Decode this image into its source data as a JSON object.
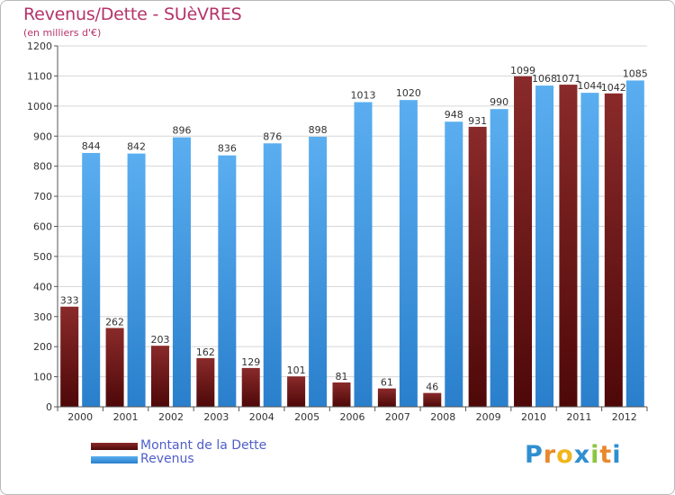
{
  "header": {
    "title": "Revenus/Dette - SUèVRES",
    "subtitle": "(en milliers d'€)"
  },
  "legend": {
    "items": [
      {
        "label": "Montant de la Dette",
        "color": "#7a1c1c"
      },
      {
        "label": "Revenus",
        "color": "#3f9be0"
      }
    ]
  },
  "logo": {
    "text": "Proxiti",
    "letters": [
      {
        "ch": "P",
        "color": "#2f8fd0"
      },
      {
        "ch": "r",
        "color": "#e8892c"
      },
      {
        "ch": "o",
        "color": "#f1b51c"
      },
      {
        "ch": "x",
        "color": "#2f8fd0"
      },
      {
        "ch": "i",
        "color": "#8cc63f"
      },
      {
        "ch": "t",
        "color": "#e8892c"
      },
      {
        "ch": "i",
        "color": "#2f8fd0"
      }
    ]
  },
  "chart_data": {
    "type": "bar",
    "title": "Revenus/Dette - SUèVRES",
    "subtitle": "(en milliers d'€)",
    "categories": [
      "2000",
      "2001",
      "2002",
      "2003",
      "2004",
      "2005",
      "2006",
      "2007",
      "2008",
      "2009",
      "2010",
      "2011",
      "2012"
    ],
    "series": [
      {
        "name": "Montant de la Dette",
        "color": "#7a1c1c",
        "values": [
          333,
          262,
          203,
          162,
          129,
          101,
          81,
          61,
          46,
          931,
          1099,
          1071,
          1042
        ]
      },
      {
        "name": "Revenus",
        "color": "#3f9be0",
        "values": [
          844,
          842,
          896,
          836,
          876,
          898,
          1013,
          1020,
          948,
          990,
          1068,
          1044,
          1085
        ]
      }
    ],
    "ylim": [
      0,
      1200
    ],
    "yticks": [
      0,
      100,
      200,
      300,
      400,
      500,
      600,
      700,
      800,
      900,
      1000,
      1100,
      1200
    ],
    "grid": true,
    "legend_position": "bottom-left"
  }
}
